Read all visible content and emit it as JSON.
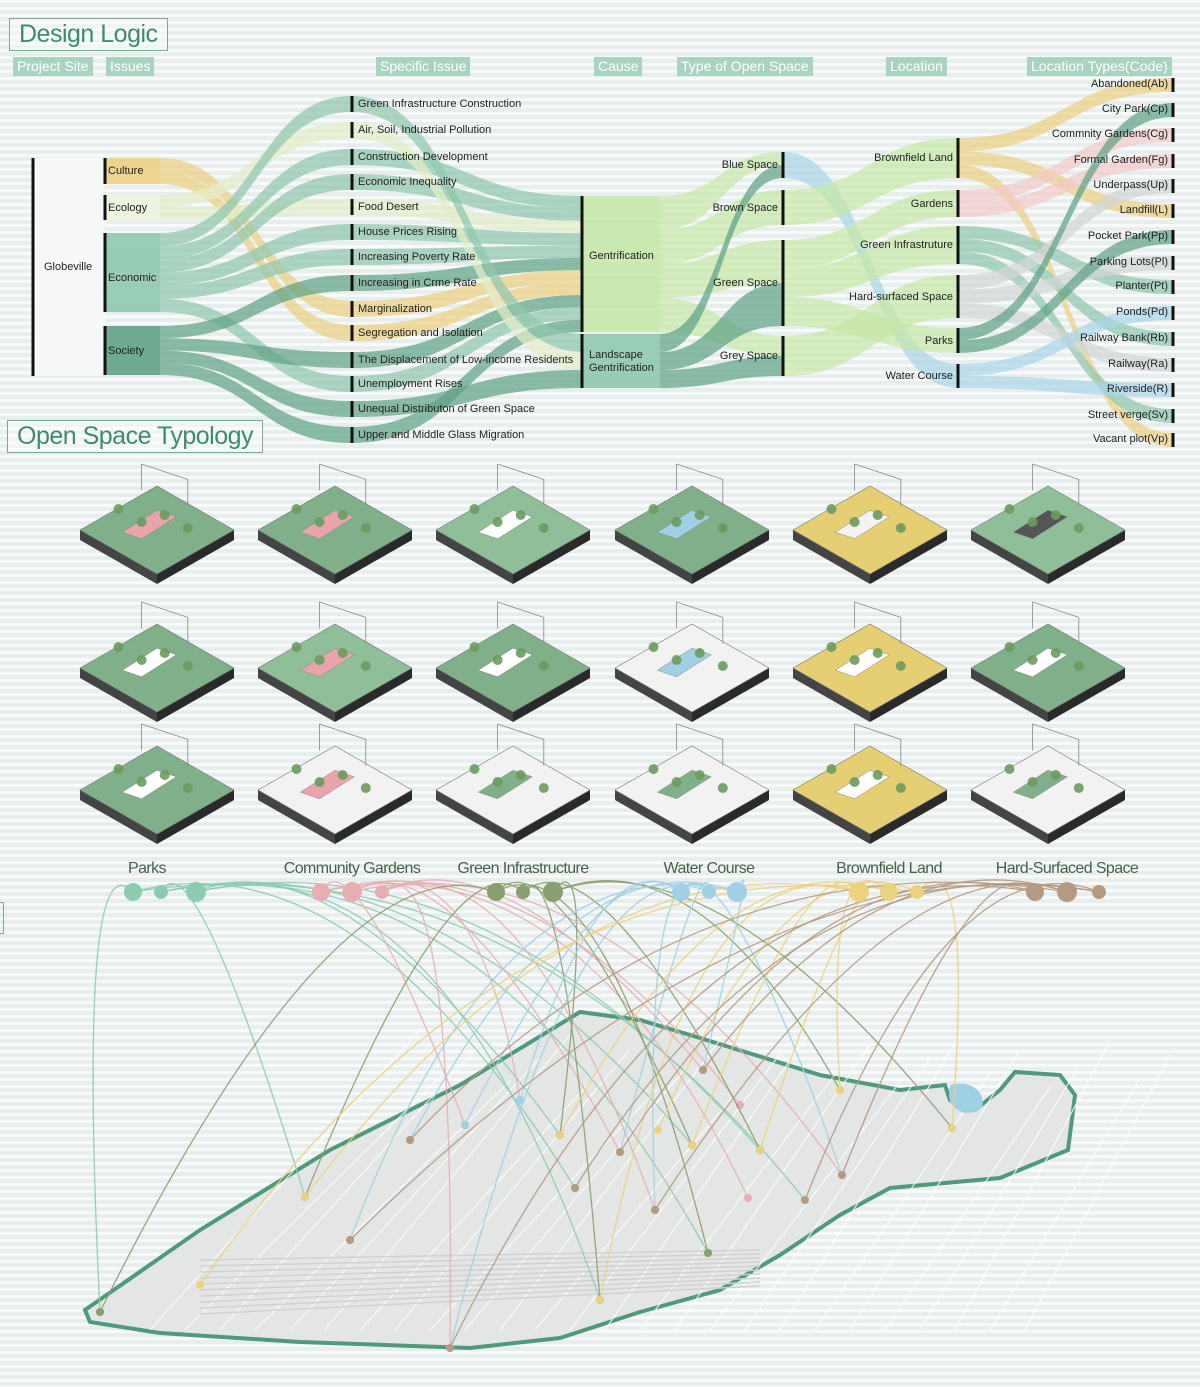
{
  "design_logic": {
    "title": "Design Logic",
    "column_headers": [
      "Project Site",
      "Issues",
      "Specific Issue",
      "Cause",
      "Type of Open Space",
      "Location",
      "Location Types(Code)"
    ],
    "project_site": "Globeville",
    "issues": [
      "Culture",
      "Ecology",
      "Economic",
      "Society"
    ],
    "specific_issues": [
      "Green Infrastructure Construction",
      "Air, Soil, Industrial Pollution",
      "Construction Development",
      "Economic Inequality",
      "Food Desert",
      "House Prices Rising",
      "Increasing Poverty Rate",
      "Increasing in Crme Rate",
      "Marginalization",
      "Segregation and Isolation",
      "The Displacement of Low-income Residents",
      "Unemployment Rises",
      "Unequal Distributon of Green Space",
      "Upper and Middle Glass Migration"
    ],
    "causes": [
      "Gentrification",
      "Landscape Gentrification"
    ],
    "open_space_types": [
      "Blue Space",
      "Brown Space",
      "Green Space",
      "Grey Space"
    ],
    "locations": [
      "Brownfield Land",
      "Gardens",
      "Green Infrastruture",
      "Hard-surfaced Space",
      "Parks",
      "Water Course"
    ],
    "location_types": [
      "Abandoned(Ab)",
      "City Park(Cp)",
      "Commnity Gardens(Cg)",
      "Formal Garden(Fg)",
      "Underpass(Up)",
      "Landfill(L)",
      "Pocket Park(Pp)",
      "Parking Lots(Pl)",
      "Planter(Pt)",
      "Ponds(Pd)",
      "Railway Bank(Rb)",
      "Railway(Ra)",
      "Riverside(R)",
      "Street verge(Sv)",
      "Vacant plot(Vp)"
    ],
    "links": [
      [
        "Globeville",
        "Culture",
        "yellow"
      ],
      [
        "Globeville",
        "Ecology",
        "pale"
      ],
      [
        "Globeville",
        "Economic",
        "green"
      ],
      [
        "Globeville",
        "Society",
        "dark"
      ],
      [
        "Culture",
        "Marginalization",
        "yellow"
      ],
      [
        "Culture",
        "Segregation and Isolation",
        "yellow"
      ],
      [
        "Ecology",
        "Air, Soil, Industrial Pollution",
        "pale"
      ],
      [
        "Ecology",
        "Food Desert",
        "pale"
      ],
      [
        "Economic",
        "Green Infrastructure Construction",
        "green"
      ],
      [
        "Economic",
        "Construction Development",
        "green"
      ],
      [
        "Economic",
        "Economic Inequality",
        "green"
      ],
      [
        "Economic",
        "House Prices Rising",
        "green"
      ],
      [
        "Economic",
        "Increasing Poverty Rate",
        "green"
      ],
      [
        "Economic",
        "Unemployment Rises",
        "green"
      ],
      [
        "Society",
        "Increasing in Crme Rate",
        "dark"
      ],
      [
        "Society",
        "The Displacement of Low-income Residents",
        "dark"
      ],
      [
        "Society",
        "Unequal Distributon of Green Space",
        "dark"
      ],
      [
        "Society",
        "Upper and Middle Glass Migration",
        "dark"
      ],
      [
        "Construction Development",
        "Gentrification",
        "green"
      ],
      [
        "Economic Inequality",
        "Gentrification",
        "green"
      ],
      [
        "Food Desert",
        "Gentrification",
        "pale"
      ],
      [
        "House Prices Rising",
        "Gentrification",
        "green"
      ],
      [
        "Increasing Poverty Rate",
        "Gentrification",
        "green"
      ],
      [
        "Increasing in Crme Rate",
        "Gentrification",
        "dark"
      ],
      [
        "Marginalization",
        "Gentrification",
        "yellow"
      ],
      [
        "Segregation and Isolation",
        "Gentrification",
        "yellow"
      ],
      [
        "The Displacement of Low-income Residents",
        "Gentrification",
        "dark"
      ],
      [
        "Unemployment Rises",
        "Gentrification",
        "green"
      ],
      [
        "Upper and Middle Glass Migration",
        "Gentrification",
        "dark"
      ],
      [
        "Green Infrastructure Construction",
        "Landscape Gentrification",
        "green"
      ],
      [
        "Air, Soil, Industrial Pollution",
        "Landscape Gentrification",
        "pale"
      ],
      [
        "Unequal Distributon of Green Space",
        "Landscape Gentrification",
        "dark"
      ],
      [
        "Gentrification",
        "Blue Space",
        "lime"
      ],
      [
        "Gentrification",
        "Brown Space",
        "lime"
      ],
      [
        "Gentrification",
        "Green Space",
        "lime"
      ],
      [
        "Gentrification",
        "Grey Space",
        "lime"
      ],
      [
        "Landscape Gentrification",
        "Blue Space",
        "dark"
      ],
      [
        "Landscape Gentrification",
        "Green Space",
        "dark"
      ],
      [
        "Landscape Gentrification",
        "Grey Space",
        "dark"
      ],
      [
        "Blue Space",
        "Water Course",
        "blue"
      ],
      [
        "Brown Space",
        "Brownfield Land",
        "lime"
      ],
      [
        "Green Space",
        "Gardens",
        "lime"
      ],
      [
        "Green Space",
        "Green Infrastruture",
        "lime"
      ],
      [
        "Green Space",
        "Parks",
        "lime"
      ],
      [
        "Grey Space",
        "Hard-surfaced Space",
        "lime"
      ],
      [
        "Brownfield Land",
        "Abandoned(Ab)",
        "yellow"
      ],
      [
        "Brownfield Land",
        "Landfill(L)",
        "yellow"
      ],
      [
        "Brownfield Land",
        "Vacant plot(Vp)",
        "yellow"
      ],
      [
        "Gardens",
        "Commnity Gardens(Cg)",
        "pink"
      ],
      [
        "Gardens",
        "Formal Garden(Fg)",
        "pink"
      ],
      [
        "Green Infrastruture",
        "Planter(Pt)",
        "green"
      ],
      [
        "Green Infrastruture",
        "Railway Bank(Rb)",
        "green"
      ],
      [
        "Green Infrastruture",
        "Street verge(Sv)",
        "green"
      ],
      [
        "Hard-surfaced Space",
        "Underpass(Up)",
        "grey"
      ],
      [
        "Hard-surfaced Space",
        "Parking Lots(Pl)",
        "grey"
      ],
      [
        "Hard-surfaced Space",
        "Railway(Ra)",
        "grey"
      ],
      [
        "Parks",
        "City Park(Cp)",
        "dark"
      ],
      [
        "Parks",
        "Pocket Park(Pp)",
        "dark"
      ],
      [
        "Water Course",
        "Ponds(Pd)",
        "blue"
      ],
      [
        "Water Course",
        "Riverside(R)",
        "blue"
      ]
    ],
    "link_colors": {
      "yellow": "#ecd083",
      "pale": "#e3edc8",
      "green": "#8fc8ad",
      "dark": "#5fa286",
      "lime": "#c7e8a8",
      "blue": "#a9d6e6",
      "pink": "#f3c9c9",
      "grey": "#d2d6d6"
    }
  },
  "typology": {
    "title": "Open Space Typology",
    "categories": [
      {
        "name": "Parks",
        "color": "#8ccbb0"
      },
      {
        "name": "Community Gardens",
        "color": "#e8aeb4"
      },
      {
        "name": "Green Infrastructure",
        "color": "#8a9f6e"
      },
      {
        "name": "Water Course",
        "color": "#9fd0e3"
      },
      {
        "name": "Brownfield Land",
        "color": "#ebd27e"
      },
      {
        "name": "Hard-Surfaced Space",
        "color": "#b59a82"
      }
    ],
    "map_outline_color": "#4f9a7c"
  }
}
